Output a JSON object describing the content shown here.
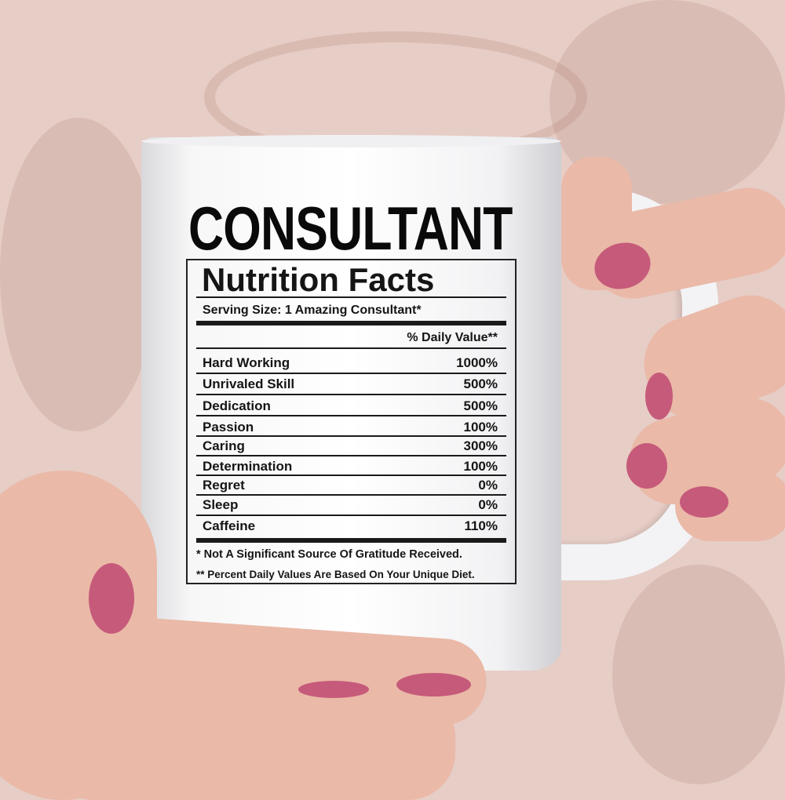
{
  "mug": {
    "title": "CONSULTANT",
    "subtitle": "Nutrition Facts",
    "serving_size": "Serving Size:  1 Amazing Consultant*",
    "daily_value_header": "% Daily Value**",
    "rows": [
      {
        "label": "Hard Working",
        "value": "1000%"
      },
      {
        "label": "Unrivaled Skill",
        "value": "500%"
      },
      {
        "label": "Dedication",
        "value": "500%"
      },
      {
        "label": "Passion",
        "value": "100%"
      },
      {
        "label": "Caring",
        "value": "300%"
      },
      {
        "label": "Determination",
        "value": "100%"
      },
      {
        "label": "Regret",
        "value": "0%"
      },
      {
        "label": "Sleep",
        "value": "0%"
      },
      {
        "label": "Caffeine",
        "value": "110%"
      }
    ],
    "footnote_1": "* Not A Significant Source Of Gratitude Received.",
    "footnote_2": "** Percent Daily Values Are Based On Your Unique Diet."
  },
  "colors": {
    "background": "#e6cdc6",
    "mug": "#ffffff",
    "nails": "#c65a7a",
    "skin": "#eab9a8",
    "text": "#151515"
  }
}
